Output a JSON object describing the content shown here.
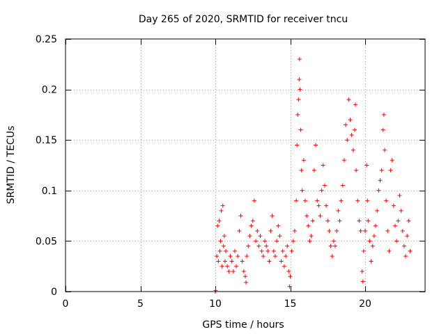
{
  "chart_data": {
    "type": "scatter",
    "title": "Day 265 of 2020, SRMTID for receiver tncu",
    "xlabel": "GPS time / hours",
    "ylabel": "SRMTID / TECUs",
    "xlim": [
      0,
      24
    ],
    "ylim": [
      0,
      0.25
    ],
    "x_ticks": [
      0,
      5,
      10,
      15,
      20
    ],
    "x_tick_labels": [
      "0",
      "5",
      "10",
      "15",
      "20"
    ],
    "y_ticks": [
      0,
      0.05,
      0.1,
      0.15,
      0.2,
      0.25
    ],
    "y_tick_labels": [
      "0",
      "0.05",
      "0.1",
      "0.15",
      "0.2",
      "0.25"
    ],
    "grid": true,
    "marker": "+",
    "color": "#ff0000",
    "series": [
      {
        "name": "SRMTID",
        "points": [
          [
            10.0,
            0.0
          ],
          [
            10.02,
            0.001
          ],
          [
            10.1,
            0.035
          ],
          [
            10.15,
            0.065
          ],
          [
            10.2,
            0.03
          ],
          [
            10.25,
            0.07
          ],
          [
            10.3,
            0.04
          ],
          [
            10.35,
            0.05
          ],
          [
            10.4,
            0.08
          ],
          [
            10.45,
            0.025
          ],
          [
            10.5,
            0.085
          ],
          [
            10.55,
            0.045
          ],
          [
            10.6,
            0.055
          ],
          [
            10.65,
            0.03
          ],
          [
            10.7,
            0.04
          ],
          [
            10.8,
            0.025
          ],
          [
            10.9,
            0.02
          ],
          [
            11.0,
            0.035
          ],
          [
            11.1,
            0.03
          ],
          [
            11.2,
            0.02
          ],
          [
            11.3,
            0.04
          ],
          [
            11.4,
            0.025
          ],
          [
            11.5,
            0.035
          ],
          [
            11.6,
            0.06
          ],
          [
            11.7,
            0.075
          ],
          [
            11.8,
            0.03
          ],
          [
            11.9,
            0.02
          ],
          [
            12.0,
            0.015
          ],
          [
            12.05,
            0.009
          ],
          [
            12.1,
            0.035
          ],
          [
            12.2,
            0.045
          ],
          [
            12.3,
            0.055
          ],
          [
            12.4,
            0.065
          ],
          [
            12.5,
            0.07
          ],
          [
            12.6,
            0.09
          ],
          [
            12.7,
            0.05
          ],
          [
            12.8,
            0.06
          ],
          [
            12.9,
            0.045
          ],
          [
            13.0,
            0.055
          ],
          [
            13.1,
            0.04
          ],
          [
            13.2,
            0.035
          ],
          [
            13.3,
            0.05
          ],
          [
            13.4,
            0.045
          ],
          [
            13.5,
            0.04
          ],
          [
            13.6,
            0.03
          ],
          [
            13.7,
            0.06
          ],
          [
            13.8,
            0.075
          ],
          [
            13.9,
            0.04
          ],
          [
            14.0,
            0.035
          ],
          [
            14.1,
            0.05
          ],
          [
            14.2,
            0.065
          ],
          [
            14.3,
            0.055
          ],
          [
            14.4,
            0.03
          ],
          [
            14.5,
            0.04
          ],
          [
            14.6,
            0.025
          ],
          [
            14.7,
            0.035
          ],
          [
            14.8,
            0.045
          ],
          [
            14.9,
            0.02
          ],
          [
            14.95,
            0.005
          ],
          [
            15.0,
            0.015
          ],
          [
            15.1,
            0.04
          ],
          [
            15.2,
            0.05
          ],
          [
            15.3,
            0.06
          ],
          [
            15.4,
            0.09
          ],
          [
            15.45,
            0.145
          ],
          [
            15.5,
            0.175
          ],
          [
            15.55,
            0.19
          ],
          [
            15.6,
            0.21
          ],
          [
            15.62,
            0.23
          ],
          [
            15.65,
            0.2
          ],
          [
            15.7,
            0.16
          ],
          [
            15.75,
            0.12
          ],
          [
            15.8,
            0.1
          ],
          [
            15.9,
            0.13
          ],
          [
            16.0,
            0.09
          ],
          [
            16.1,
            0.075
          ],
          [
            16.2,
            0.065
          ],
          [
            16.3,
            0.05
          ],
          [
            16.4,
            0.055
          ],
          [
            16.5,
            0.07
          ],
          [
            16.6,
            0.12
          ],
          [
            16.7,
            0.145
          ],
          [
            16.8,
            0.09
          ],
          [
            16.9,
            0.085
          ],
          [
            17.0,
            0.075
          ],
          [
            17.1,
            0.1
          ],
          [
            17.2,
            0.125
          ],
          [
            17.3,
            0.105
          ],
          [
            17.4,
            0.085
          ],
          [
            17.5,
            0.07
          ],
          [
            17.6,
            0.06
          ],
          [
            17.7,
            0.045
          ],
          [
            17.8,
            0.035
          ],
          [
            17.9,
            0.05
          ],
          [
            18.0,
            0.045
          ],
          [
            18.1,
            0.06
          ],
          [
            18.2,
            0.08
          ],
          [
            18.3,
            0.07
          ],
          [
            18.4,
            0.09
          ],
          [
            18.5,
            0.105
          ],
          [
            18.6,
            0.13
          ],
          [
            18.7,
            0.165
          ],
          [
            18.8,
            0.15
          ],
          [
            18.9,
            0.19
          ],
          [
            19.0,
            0.17
          ],
          [
            19.1,
            0.155
          ],
          [
            19.2,
            0.14
          ],
          [
            19.3,
            0.16
          ],
          [
            19.35,
            0.185
          ],
          [
            19.4,
            0.12
          ],
          [
            19.5,
            0.09
          ],
          [
            19.6,
            0.07
          ],
          [
            19.7,
            0.06
          ],
          [
            19.8,
            0.02
          ],
          [
            19.85,
            0.01
          ],
          [
            19.9,
            0.04
          ],
          [
            20.0,
            0.06
          ],
          [
            20.1,
            0.125
          ],
          [
            20.15,
            0.09
          ],
          [
            20.2,
            0.07
          ],
          [
            20.3,
            0.05
          ],
          [
            20.4,
            0.03
          ],
          [
            20.5,
            0.045
          ],
          [
            20.6,
            0.055
          ],
          [
            20.7,
            0.065
          ],
          [
            20.8,
            0.08
          ],
          [
            20.9,
            0.1
          ],
          [
            21.0,
            0.11
          ],
          [
            21.1,
            0.12
          ],
          [
            21.2,
            0.16
          ],
          [
            21.25,
            0.175
          ],
          [
            21.3,
            0.14
          ],
          [
            21.4,
            0.09
          ],
          [
            21.5,
            0.06
          ],
          [
            21.6,
            0.04
          ],
          [
            21.7,
            0.12
          ],
          [
            21.8,
            0.13
          ],
          [
            21.9,
            0.085
          ],
          [
            22.0,
            0.065
          ],
          [
            22.1,
            0.05
          ],
          [
            22.2,
            0.07
          ],
          [
            22.3,
            0.095
          ],
          [
            22.4,
            0.08
          ],
          [
            22.5,
            0.06
          ],
          [
            22.6,
            0.045
          ],
          [
            22.7,
            0.035
          ],
          [
            22.8,
            0.055
          ],
          [
            22.9,
            0.07
          ],
          [
            23.0,
            0.04
          ]
        ]
      }
    ]
  }
}
